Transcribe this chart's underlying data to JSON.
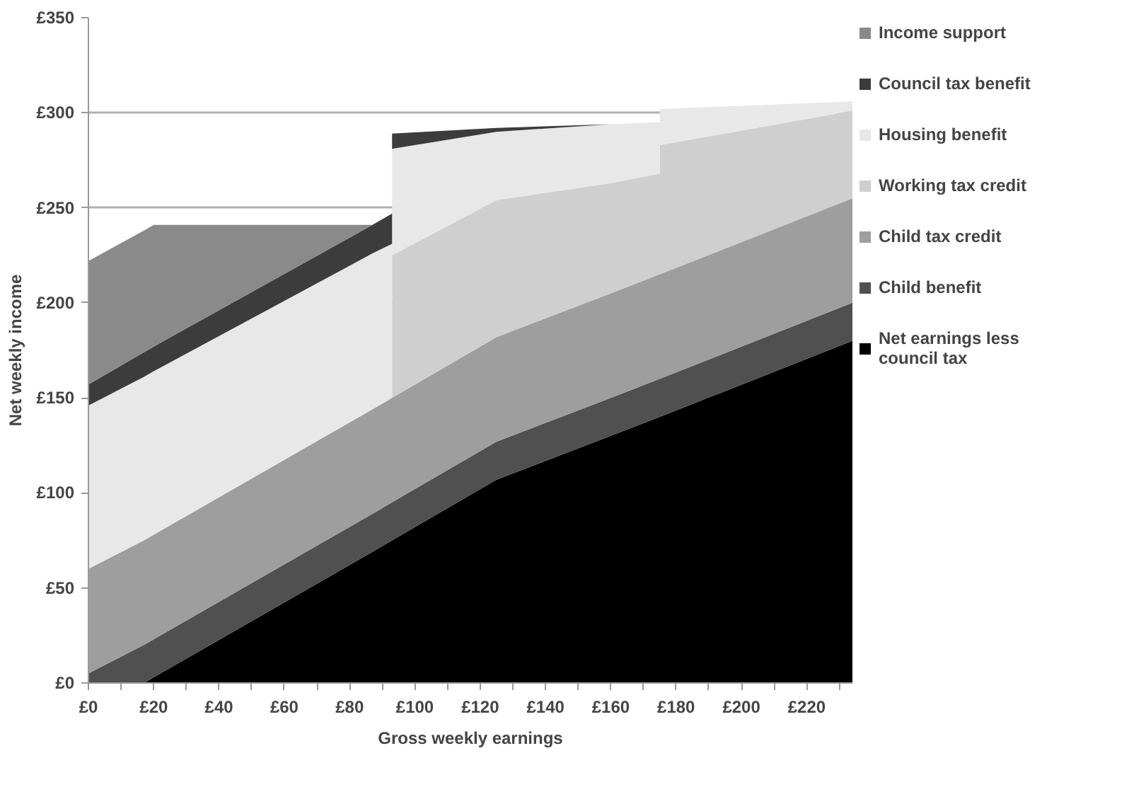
{
  "chart_data": {
    "type": "area",
    "stacked": true,
    "xlabel": "Gross weekly earnings",
    "ylabel": "Net weekly income",
    "x": [
      0,
      17,
      20,
      87,
      93,
      93,
      125,
      160,
      175,
      175,
      234
    ],
    "series": [
      {
        "name": "Net earnings less council tax",
        "color": "#000000",
        "values": [
          0,
          0,
          3,
          69,
          75,
          75,
          107,
          130,
          140,
          140,
          180
        ]
      },
      {
        "name": "Child benefit",
        "color": "#505050",
        "values": [
          5,
          20,
          20,
          20,
          20,
          20,
          20,
          20,
          20,
          20,
          20
        ]
      },
      {
        "name": "Child tax credit",
        "color": "#9e9e9e",
        "values": [
          55,
          55,
          55,
          55,
          55,
          55,
          55,
          55,
          55,
          55,
          55
        ]
      },
      {
        "name": "Working tax credit",
        "color": "#cfcfcf",
        "values": [
          0,
          0,
          0,
          0,
          0,
          75,
          72,
          58,
          53,
          68,
          46
        ]
      },
      {
        "name": "Housing benefit",
        "color": "#e8e8e8",
        "values": [
          86,
          86,
          86,
          82,
          81,
          56,
          36,
          31,
          27,
          19,
          5
        ]
      },
      {
        "name": "Council tax benefit",
        "color": "#3c3c3c",
        "values": [
          11,
          13,
          13,
          15,
          16,
          8,
          2,
          0,
          0,
          0,
          0
        ]
      },
      {
        "name": "Income support",
        "color": "#8a8a8a",
        "values": [
          65,
          64,
          64,
          0,
          0,
          0,
          0,
          0,
          0,
          0,
          0
        ]
      }
    ],
    "xlim": [
      0,
      234
    ],
    "ylim": [
      0,
      350
    ],
    "xticks": [
      {
        "value": 0,
        "label": "£0"
      },
      {
        "value": 20,
        "label": "£20"
      },
      {
        "value": 40,
        "label": "£40"
      },
      {
        "value": 60,
        "label": "£60"
      },
      {
        "value": 80,
        "label": "£80"
      },
      {
        "value": 100,
        "label": "£100"
      },
      {
        "value": 120,
        "label": "£120"
      },
      {
        "value": 140,
        "label": "£140"
      },
      {
        "value": 160,
        "label": "£160"
      },
      {
        "value": 180,
        "label": "£180"
      },
      {
        "value": 200,
        "label": "£200"
      },
      {
        "value": 220,
        "label": "£220"
      }
    ],
    "yticks": [
      {
        "value": 0,
        "label": "£0"
      },
      {
        "value": 50,
        "label": "£50"
      },
      {
        "value": 100,
        "label": "£100"
      },
      {
        "value": 150,
        "label": "£150"
      },
      {
        "value": 200,
        "label": "£200"
      },
      {
        "value": 250,
        "label": "£250"
      },
      {
        "value": 300,
        "label": "£300"
      },
      {
        "value": 350,
        "label": "£350"
      }
    ],
    "grid": "y",
    "legend": "right"
  }
}
